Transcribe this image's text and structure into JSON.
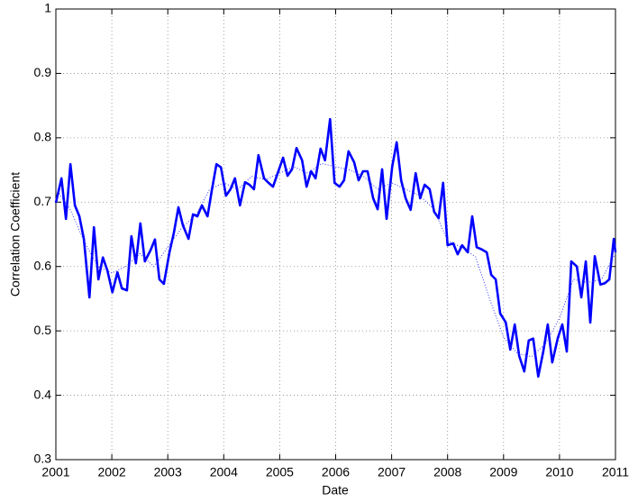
{
  "chart_data": {
    "type": "line",
    "xlabel": "Date",
    "ylabel": "Correlation Coefficient",
    "xlim": [
      2001,
      2011
    ],
    "xticks": [
      2001,
      2002,
      2003,
      2004,
      2005,
      2006,
      2007,
      2008,
      2009,
      2010,
      2011
    ],
    "ylim": [
      0.3,
      1
    ],
    "yticks": [
      0.3,
      0.4,
      0.5,
      0.6,
      0.7,
      0.8,
      0.9,
      1
    ],
    "grid": true,
    "series": [
      {
        "color": "#0000ff",
        "style": "solid",
        "x": [
          2001,
          2001.1,
          2001.18,
          2001.26,
          2001.34,
          2001.42,
          2001.5,
          2001.6,
          2001.68,
          2001.76,
          2001.84,
          2001.92,
          2002.01,
          2002.1,
          2002.18,
          2002.27,
          2002.35,
          2002.43,
          2002.51,
          2002.59,
          2002.69,
          2002.77,
          2002.85,
          2002.93,
          2003.03,
          2003.11,
          2003.19,
          2003.27,
          2003.37,
          2003.45,
          2003.53,
          2003.61,
          2003.71,
          2003.79,
          2003.87,
          2003.95,
          2004.04,
          2004.12,
          2004.2,
          2004.29,
          2004.38,
          2004.46,
          2004.54,
          2004.62,
          2004.72,
          2004.8,
          2004.88,
          2004.96,
          2005.06,
          2005.14,
          2005.22,
          2005.3,
          2005.4,
          2005.48,
          2005.56,
          2005.64,
          2005.73,
          2005.81,
          2005.9,
          2005.98,
          2006.07,
          2006.15,
          2006.23,
          2006.33,
          2006.41,
          2006.49,
          2006.57,
          2006.67,
          2006.75,
          2006.83,
          2006.91,
          2007.01,
          2007.09,
          2007.17,
          2007.25,
          2007.34,
          2007.43,
          2007.51,
          2007.59,
          2007.68,
          2007.76,
          2007.84,
          2007.92,
          2008.0,
          2008.1,
          2008.18,
          2008.26,
          2008.36,
          2008.44,
          2008.52,
          2008.6,
          2008.7,
          2008.78,
          2008.86,
          2008.94,
          2009.04,
          2009.12,
          2009.2,
          2009.28,
          2009.37,
          2009.45,
          2009.53,
          2009.62,
          2009.71,
          2009.79,
          2009.87,
          2009.97,
          2010.05,
          2010.13,
          2010.21,
          2010.31,
          2010.39,
          2010.47,
          2010.55,
          2010.63,
          2010.73,
          2010.81,
          2010.89,
          2010.97,
          2011
        ],
        "values": [
          0.699,
          0.737,
          0.674,
          0.759,
          0.695,
          0.678,
          0.643,
          0.552,
          0.661,
          0.58,
          0.614,
          0.594,
          0.56,
          0.591,
          0.566,
          0.563,
          0.647,
          0.605,
          0.667,
          0.608,
          0.625,
          0.642,
          0.58,
          0.573,
          0.622,
          0.653,
          0.692,
          0.664,
          0.643,
          0.681,
          0.678,
          0.695,
          0.678,
          0.72,
          0.759,
          0.754,
          0.71,
          0.72,
          0.737,
          0.695,
          0.731,
          0.727,
          0.72,
          0.773,
          0.737,
          0.73,
          0.724,
          0.744,
          0.769,
          0.741,
          0.751,
          0.784,
          0.765,
          0.724,
          0.748,
          0.737,
          0.783,
          0.765,
          0.829,
          0.73,
          0.724,
          0.734,
          0.779,
          0.762,
          0.734,
          0.748,
          0.748,
          0.706,
          0.689,
          0.751,
          0.674,
          0.755,
          0.793,
          0.734,
          0.706,
          0.688,
          0.745,
          0.706,
          0.727,
          0.72,
          0.685,
          0.675,
          0.73,
          0.633,
          0.636,
          0.619,
          0.633,
          0.622,
          0.678,
          0.63,
          0.627,
          0.622,
          0.587,
          0.58,
          0.527,
          0.513,
          0.471,
          0.51,
          0.461,
          0.437,
          0.485,
          0.488,
          0.429,
          0.468,
          0.51,
          0.451,
          0.489,
          0.51,
          0.468,
          0.608,
          0.6,
          0.552,
          0.608,
          0.513,
          0.616,
          0.572,
          0.574,
          0.58,
          0.643,
          0.622
        ]
      },
      {
        "color": "#3030ff",
        "style": "dotted",
        "x": [
          2001,
          2001.25,
          2001.5,
          2001.75,
          2002,
          2002.25,
          2002.5,
          2002.75,
          2003,
          2003.25,
          2003.5,
          2003.75,
          2004,
          2004.25,
          2004.5,
          2004.75,
          2005,
          2005.25,
          2005.5,
          2005.75,
          2006,
          2006.25,
          2006.5,
          2006.75,
          2007,
          2007.25,
          2007.5,
          2007.75,
          2008,
          2008.25,
          2008.5,
          2008.75,
          2009,
          2009.25,
          2009.5,
          2009.75,
          2010,
          2010.25,
          2010.5,
          2010.75,
          2011
        ],
        "values": [
          0.72,
          0.69,
          0.64,
          0.6,
          0.59,
          0.6,
          0.62,
          0.6,
          0.63,
          0.66,
          0.68,
          0.72,
          0.73,
          0.72,
          0.74,
          0.735,
          0.745,
          0.755,
          0.745,
          0.76,
          0.755,
          0.75,
          0.74,
          0.72,
          0.73,
          0.72,
          0.71,
          0.69,
          0.64,
          0.63,
          0.615,
          0.55,
          0.49,
          0.465,
          0.46,
          0.48,
          0.52,
          0.58,
          0.575,
          0.58,
          0.62
        ]
      }
    ]
  }
}
